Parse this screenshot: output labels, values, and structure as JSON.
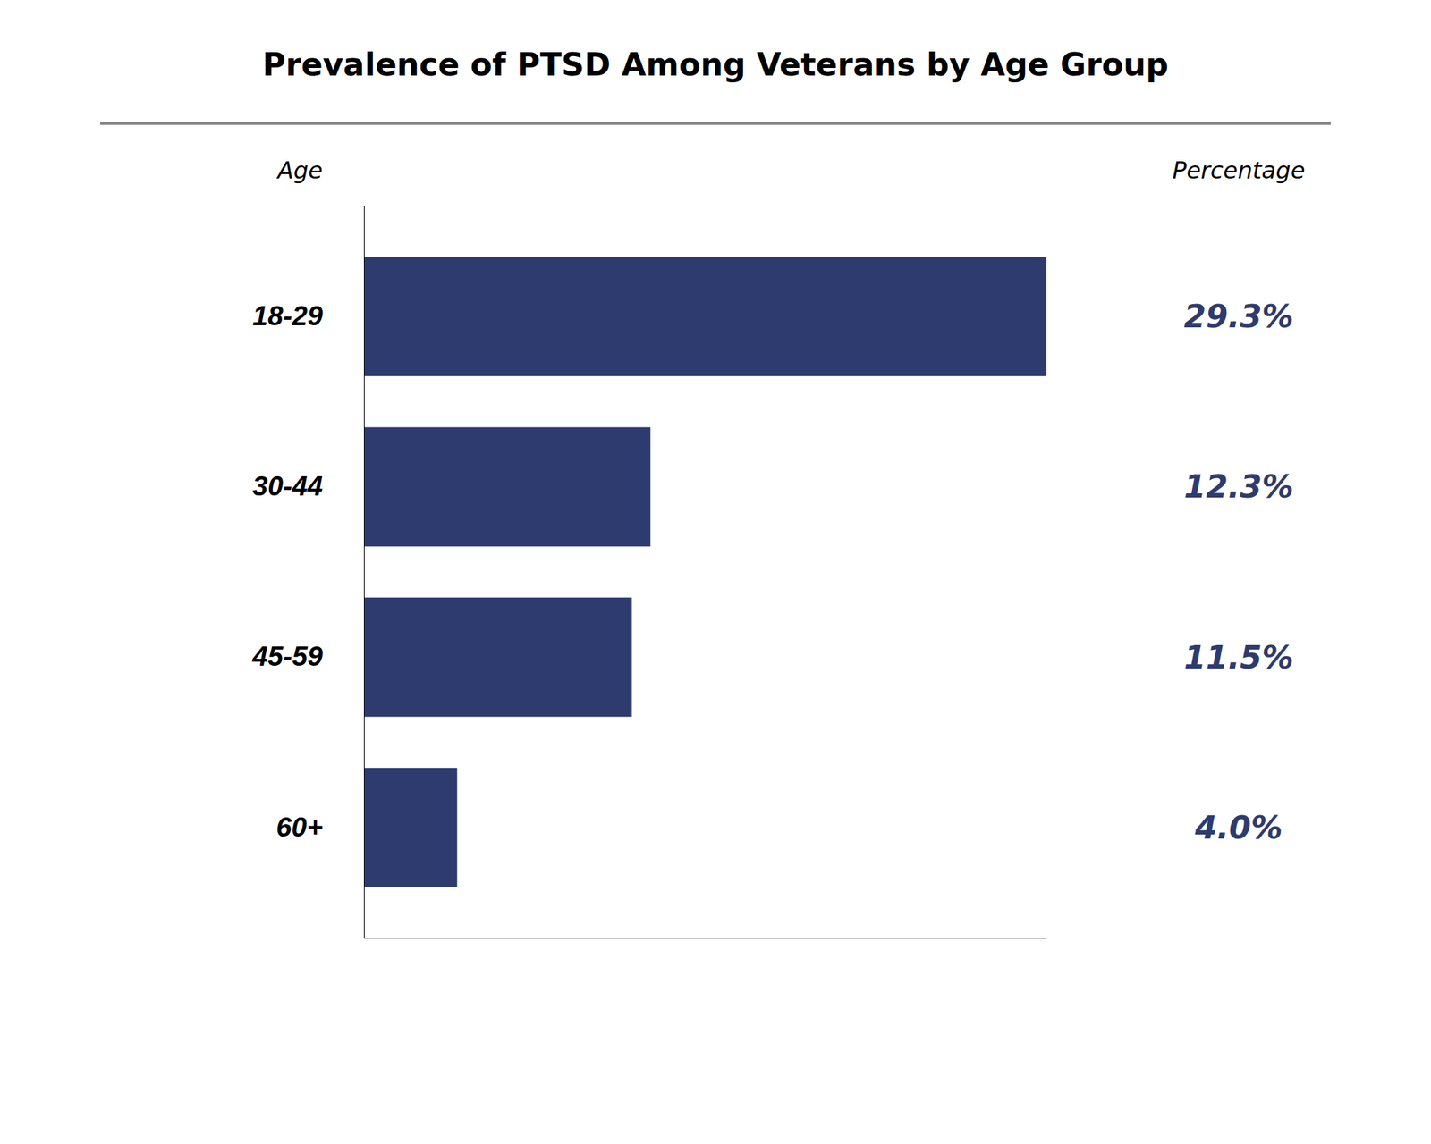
{
  "chart_data": {
    "type": "bar",
    "orientation": "horizontal",
    "title": "Prevalence of PTSD Among Veterans by Age Group",
    "ylabel": "Age",
    "xlabel": "Percentage",
    "categories": [
      "18-29",
      "30-44",
      "45-59",
      "60+"
    ],
    "values": [
      29.3,
      12.3,
      11.5,
      4.0
    ],
    "value_labels": [
      "29.3%",
      "12.3%",
      "11.5%",
      "4.0%"
    ],
    "color": "#2E3B6E",
    "xlim": [
      0,
      29.3
    ],
    "data_labels": true,
    "tick_labels": "y",
    "grid": false
  }
}
